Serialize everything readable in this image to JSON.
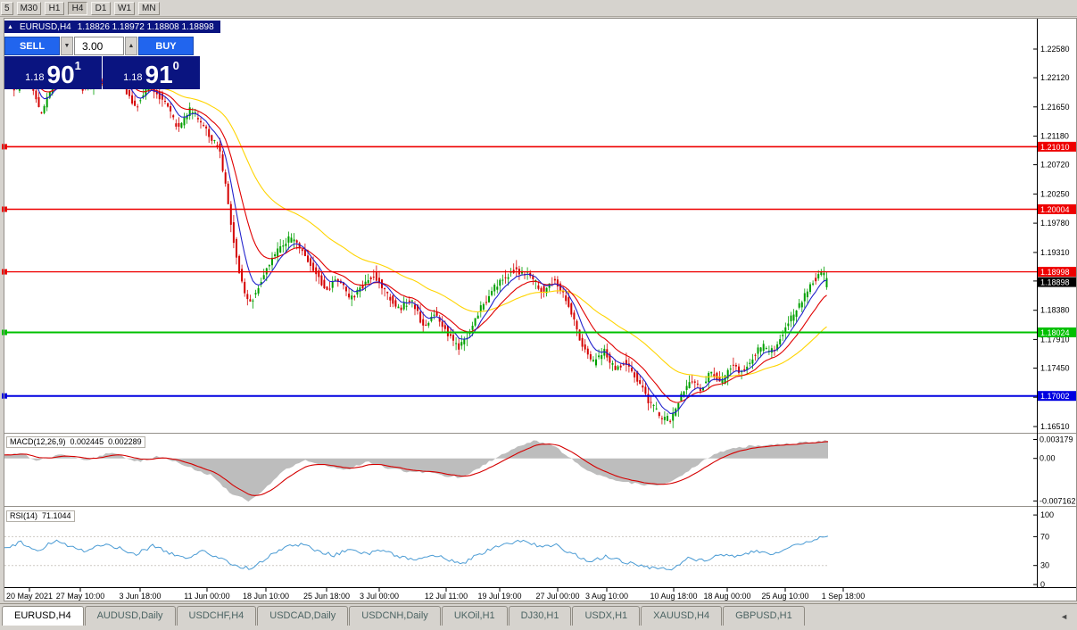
{
  "toolbar": {
    "periods": [
      {
        "label": "5",
        "active": false
      },
      {
        "label": "M30",
        "active": false
      },
      {
        "label": "H1",
        "active": false
      },
      {
        "label": "H4",
        "active": true
      },
      {
        "label": "D1",
        "active": false
      },
      {
        "label": "W1",
        "active": false
      },
      {
        "label": "MN",
        "active": false
      }
    ]
  },
  "chart_header": {
    "collapse_icon": "▲",
    "title": "EURUSD,H4",
    "ohlc_text": "1.18826 1.18972 1.18808 1.18898"
  },
  "trade_panel": {
    "sell_label": "SELL",
    "buy_label": "BUY",
    "volume": "3.00",
    "spin_down_icon": "▼",
    "spin_up_icon": "▲",
    "sell_price": {
      "prefix": "1.18",
      "big": "90",
      "sup": "1"
    },
    "buy_price": {
      "prefix": "1.18",
      "big": "91",
      "sup": "0"
    }
  },
  "tabs_bar": {
    "scroll_icon": "◄"
  },
  "tabs": [
    {
      "label": "EURUSD,H4",
      "active": true
    },
    {
      "label": "AUDUSD,Daily",
      "active": false
    },
    {
      "label": "USDCHF,H4",
      "active": false
    },
    {
      "label": "USDCAD,Daily",
      "active": false
    },
    {
      "label": "USDCNH,Daily",
      "active": false
    },
    {
      "label": "UKOil,H1",
      "active": false
    },
    {
      "label": "DJ30,H1",
      "active": false
    },
    {
      "label": "USDX,H1",
      "active": false
    },
    {
      "label": "XAUUSD,H4",
      "active": false
    },
    {
      "label": "GBPUSD,H1",
      "active": false
    }
  ],
  "chart_data": {
    "type": "candlestick",
    "title": "EURUSD,H4",
    "symbol": "EURUSD",
    "timeframe": "H4",
    "ohlc": {
      "open": 1.18826,
      "high": 1.18972,
      "low": 1.18808,
      "close": 1.18898
    },
    "colors": {
      "up": "#00a000",
      "down": "#d40000",
      "bg": "#ffffff"
    },
    "y_axis": {
      "ticks": [
        "1.22580",
        "1.22120",
        "1.21650",
        "1.21180",
        "1.20720",
        "1.20250",
        "1.19780",
        "1.19310",
        "1.18850",
        "1.18380",
        "1.17910",
        "1.17450",
        "1.16980",
        "1.16510"
      ]
    },
    "h_lines": [
      {
        "price": 1.2101,
        "label": "1.21010",
        "color": "#ee0000",
        "width": 1.6
      },
      {
        "price": 1.20004,
        "label": "1.20004",
        "color": "#ee0000",
        "width": 1.6
      },
      {
        "price": 1.18998,
        "label": "1.18998",
        "color": "#ee0000",
        "width": 1.3
      },
      {
        "price": 1.18024,
        "label": "1.18024",
        "color": "#00c000",
        "width": 2
      },
      {
        "price": 1.17002,
        "label": "1.17002",
        "color": "#0000e0",
        "width": 2
      }
    ],
    "current_price": {
      "label": "1.18898",
      "bg": "#000000"
    },
    "candles": {
      "count": 300
    },
    "price_path": [
      [
        0.0,
        1.2215
      ],
      [
        0.015,
        1.219
      ],
      [
        0.03,
        1.2228
      ],
      [
        0.045,
        1.2152
      ],
      [
        0.062,
        1.2205
      ],
      [
        0.08,
        1.2218
      ],
      [
        0.1,
        1.2192
      ],
      [
        0.118,
        1.2208
      ],
      [
        0.133,
        1.2228
      ],
      [
        0.148,
        1.2196
      ],
      [
        0.162,
        1.2165
      ],
      [
        0.178,
        1.22
      ],
      [
        0.196,
        1.2175
      ],
      [
        0.212,
        1.213
      ],
      [
        0.228,
        1.2162
      ],
      [
        0.247,
        1.2128
      ],
      [
        0.263,
        1.2098
      ],
      [
        0.273,
        1.2022
      ],
      [
        0.283,
        1.1932
      ],
      [
        0.293,
        1.1868
      ],
      [
        0.302,
        1.1852
      ],
      [
        0.315,
        1.1888
      ],
      [
        0.332,
        1.1932
      ],
      [
        0.348,
        1.1952
      ],
      [
        0.363,
        1.194
      ],
      [
        0.378,
        1.1905
      ],
      [
        0.393,
        1.187
      ],
      [
        0.408,
        1.1888
      ],
      [
        0.423,
        1.1856
      ],
      [
        0.438,
        1.1878
      ],
      [
        0.452,
        1.1896
      ],
      [
        0.468,
        1.1862
      ],
      [
        0.483,
        1.184
      ],
      [
        0.497,
        1.1856
      ],
      [
        0.512,
        1.1812
      ],
      [
        0.527,
        1.1836
      ],
      [
        0.542,
        1.18
      ],
      [
        0.555,
        1.1776
      ],
      [
        0.568,
        1.1802
      ],
      [
        0.583,
        1.1846
      ],
      [
        0.602,
        1.188
      ],
      [
        0.622,
        1.1902
      ],
      [
        0.642,
        1.1894
      ],
      [
        0.658,
        1.1868
      ],
      [
        0.672,
        1.1888
      ],
      [
        0.688,
        1.1848
      ],
      [
        0.703,
        1.179
      ],
      [
        0.718,
        1.1752
      ],
      [
        0.732,
        1.1772
      ],
      [
        0.745,
        1.1742
      ],
      [
        0.758,
        1.1756
      ],
      [
        0.772,
        1.173
      ],
      [
        0.785,
        1.1695
      ],
      [
        0.8,
        1.1668
      ],
      [
        0.812,
        1.1662
      ],
      [
        0.825,
        1.17
      ],
      [
        0.838,
        1.1728
      ],
      [
        0.85,
        1.171
      ],
      [
        0.862,
        1.1738
      ],
      [
        0.875,
        1.1722
      ],
      [
        0.888,
        1.1752
      ],
      [
        0.9,
        1.1738
      ],
      [
        0.912,
        1.1762
      ],
      [
        0.925,
        1.178
      ],
      [
        0.938,
        1.1772
      ],
      [
        0.95,
        1.18
      ],
      [
        0.963,
        1.1832
      ],
      [
        0.976,
        1.1862
      ],
      [
        0.988,
        1.1888
      ],
      [
        1.0,
        1.1896
      ]
    ],
    "moving_averages": [
      {
        "period": 45,
        "color": "#ffd400"
      },
      {
        "period": 16,
        "color": "#e00000"
      },
      {
        "period": 7,
        "color": "#2222cc"
      }
    ],
    "macd": {
      "name": "MACD(12,26,9)",
      "value_main": "0.002445",
      "value_signal": "0.002289",
      "scale": [
        "0.003179",
        "0.00",
        "-0.007162"
      ],
      "vmax": 0.004,
      "vmin": -0.008,
      "hist_color": "#bdbdbd",
      "signal_color": "#d40000",
      "hist": [
        [
          0.0,
          0.0005
        ],
        [
          0.02,
          0.0009
        ],
        [
          0.04,
          -0.0004
        ],
        [
          0.07,
          0.0006
        ],
        [
          0.1,
          -0.0003
        ],
        [
          0.13,
          0.001
        ],
        [
          0.16,
          -0.0006
        ],
        [
          0.19,
          0.0004
        ],
        [
          0.22,
          -0.0013
        ],
        [
          0.25,
          -0.0028
        ],
        [
          0.275,
          -0.0058
        ],
        [
          0.295,
          -0.0072
        ],
        [
          0.315,
          -0.0052
        ],
        [
          0.34,
          -0.0018
        ],
        [
          0.365,
          -0.0004
        ],
        [
          0.39,
          -0.0012
        ],
        [
          0.415,
          -0.002
        ],
        [
          0.44,
          -0.0006
        ],
        [
          0.465,
          -0.0016
        ],
        [
          0.49,
          -0.0022
        ],
        [
          0.515,
          -0.0024
        ],
        [
          0.54,
          -0.003
        ],
        [
          0.555,
          -0.0032
        ],
        [
          0.575,
          -0.0018
        ],
        [
          0.6,
          0.0004
        ],
        [
          0.625,
          0.0022
        ],
        [
          0.645,
          0.003
        ],
        [
          0.665,
          0.0022
        ],
        [
          0.685,
          0.0004
        ],
        [
          0.705,
          -0.0018
        ],
        [
          0.73,
          -0.0032
        ],
        [
          0.755,
          -0.004
        ],
        [
          0.78,
          -0.0046
        ],
        [
          0.8,
          -0.0044
        ],
        [
          0.82,
          -0.003
        ],
        [
          0.84,
          -0.0012
        ],
        [
          0.86,
          0.0006
        ],
        [
          0.88,
          0.0016
        ],
        [
          0.9,
          0.002
        ],
        [
          0.92,
          0.0022
        ],
        [
          0.94,
          0.0024
        ],
        [
          0.96,
          0.0026
        ],
        [
          0.98,
          0.0028
        ],
        [
          1.0,
          0.003
        ]
      ]
    },
    "rsi": {
      "name": "RSI(14)",
      "value": "71.1044",
      "scale": [
        "100",
        "70",
        "30",
        "0"
      ],
      "levels": [
        70,
        30
      ],
      "vmax": 110,
      "vmin": 0,
      "color": "#4a9bd4",
      "path": [
        [
          0.0,
          55
        ],
        [
          0.02,
          62
        ],
        [
          0.04,
          50
        ],
        [
          0.06,
          64
        ],
        [
          0.08,
          57
        ],
        [
          0.1,
          50
        ],
        [
          0.12,
          60
        ],
        [
          0.14,
          54
        ],
        [
          0.16,
          46
        ],
        [
          0.18,
          57
        ],
        [
          0.2,
          48
        ],
        [
          0.22,
          40
        ],
        [
          0.24,
          50
        ],
        [
          0.26,
          42
        ],
        [
          0.28,
          30
        ],
        [
          0.3,
          26
        ],
        [
          0.32,
          42
        ],
        [
          0.34,
          55
        ],
        [
          0.36,
          60
        ],
        [
          0.38,
          50
        ],
        [
          0.4,
          44
        ],
        [
          0.42,
          54
        ],
        [
          0.44,
          46
        ],
        [
          0.46,
          52
        ],
        [
          0.48,
          42
        ],
        [
          0.5,
          36
        ],
        [
          0.52,
          46
        ],
        [
          0.54,
          38
        ],
        [
          0.555,
          32
        ],
        [
          0.57,
          42
        ],
        [
          0.59,
          52
        ],
        [
          0.61,
          60
        ],
        [
          0.63,
          64
        ],
        [
          0.65,
          56
        ],
        [
          0.67,
          58
        ],
        [
          0.69,
          46
        ],
        [
          0.71,
          36
        ],
        [
          0.73,
          42
        ],
        [
          0.75,
          36
        ],
        [
          0.77,
          30
        ],
        [
          0.79,
          26
        ],
        [
          0.81,
          24
        ],
        [
          0.83,
          40
        ],
        [
          0.85,
          36
        ],
        [
          0.87,
          46
        ],
        [
          0.89,
          42
        ],
        [
          0.91,
          50
        ],
        [
          0.93,
          46
        ],
        [
          0.95,
          54
        ],
        [
          0.97,
          62
        ],
        [
          0.99,
          68
        ],
        [
          1.0,
          71
        ]
      ]
    },
    "x_axis": {
      "labels": [
        "20 May 2021",
        "27 May 10:00",
        "3 Jun 18:00",
        "11 Jun 00:00",
        "18 Jun 10:00",
        "25 Jun 18:00",
        "3 Jul 00:00",
        "12 Jul 11:00",
        "19 Jul 19:00",
        "27 Jul 00:00",
        "3 Aug 10:00",
        "10 Aug 18:00",
        "18 Aug 00:00",
        "25 Aug 10:00",
        "1 Sep 18:00"
      ],
      "positions": [
        33,
        90,
        157,
        232,
        298,
        366,
        425,
        500,
        560,
        625,
        680,
        755,
        815,
        880,
        945
      ]
    }
  }
}
